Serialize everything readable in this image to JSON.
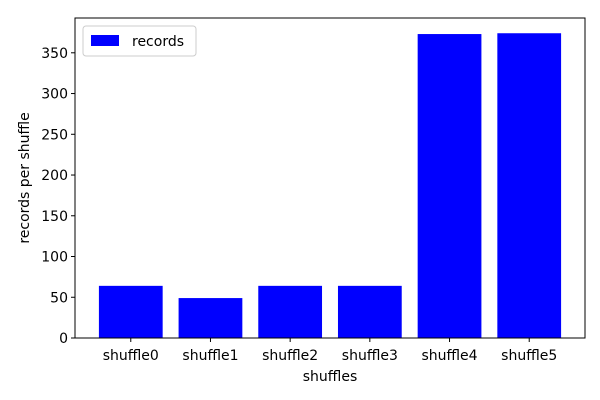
{
  "chart_data": {
    "type": "bar",
    "categories": [
      "shuffle0",
      "shuffle1",
      "shuffle2",
      "shuffle3",
      "shuffle4",
      "shuffle5"
    ],
    "series": [
      {
        "name": "records",
        "values": [
          64,
          49,
          64,
          64,
          373,
          374
        ],
        "color": "#0000ff"
      }
    ],
    "xlabel": "shuffles",
    "ylabel": "records per shuffle",
    "ylim": [
      0,
      392.7
    ],
    "yticks": [
      0,
      50,
      100,
      150,
      200,
      250,
      300,
      350
    ],
    "grid": false,
    "legend": {
      "position": "top-left",
      "entries": [
        "records"
      ]
    }
  }
}
